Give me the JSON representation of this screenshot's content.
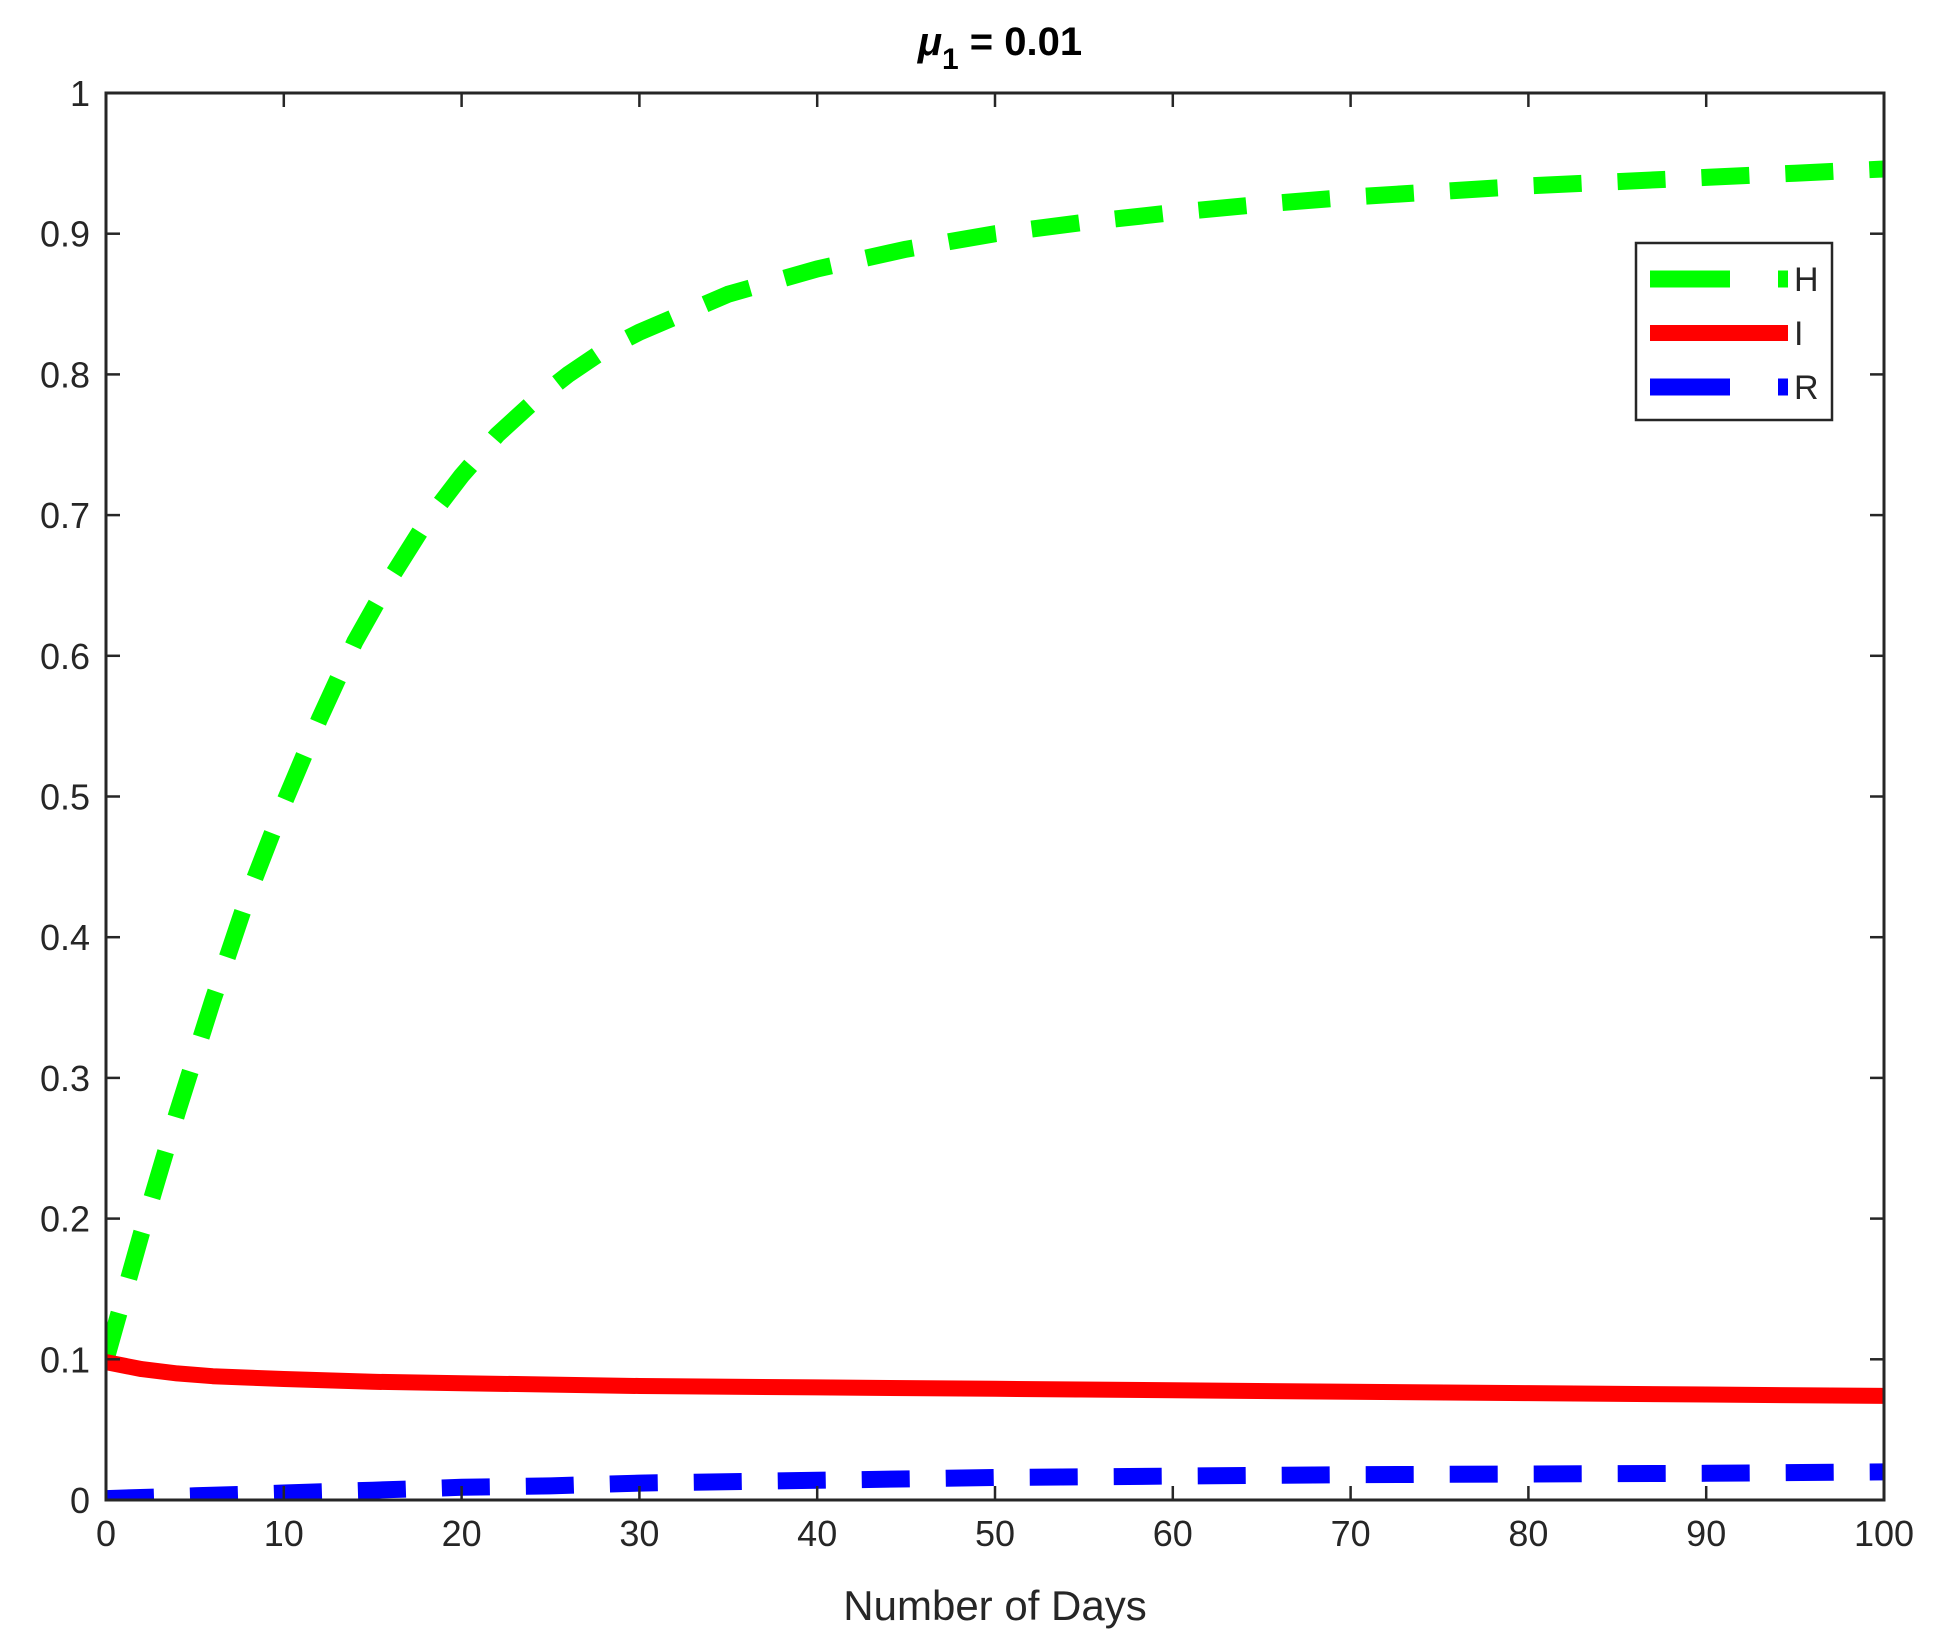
{
  "chart_data": {
    "type": "line",
    "title": {
      "symbol": "μ",
      "subscript": "1",
      "rest": " = 0.01"
    },
    "xlabel": "Number of Days",
    "ylabel": "",
    "xlim": [
      0,
      100
    ],
    "ylim": [
      0,
      1
    ],
    "xticks": [
      0,
      10,
      20,
      30,
      40,
      50,
      60,
      70,
      80,
      90,
      100
    ],
    "xtick_labels": [
      "0",
      "10",
      "20",
      "30",
      "40",
      "50",
      "60",
      "70",
      "80",
      "90",
      "100"
    ],
    "yticks": [
      0,
      0.1,
      0.2,
      0.3,
      0.4,
      0.5,
      0.6,
      0.7,
      0.8,
      0.9,
      1
    ],
    "ytick_labels": [
      "0",
      "0.1",
      "0.2",
      "0.3",
      "0.4",
      "0.5",
      "0.6",
      "0.7",
      "0.8",
      "0.9",
      "1"
    ],
    "grid": false,
    "legend_position": "top-right",
    "series": [
      {
        "name": "H",
        "color": "#00ff00",
        "style": "dashed",
        "x": [
          0,
          2,
          4,
          6,
          8,
          10,
          12,
          14,
          16,
          18,
          20,
          22,
          24,
          26,
          28,
          30,
          35,
          40,
          45,
          50,
          55,
          60,
          65,
          70,
          75,
          80,
          85,
          90,
          95,
          100
        ],
        "y": [
          0.1,
          0.19,
          0.275,
          0.355,
          0.43,
          0.495,
          0.555,
          0.61,
          0.655,
          0.695,
          0.728,
          0.757,
          0.78,
          0.8,
          0.817,
          0.83,
          0.857,
          0.875,
          0.889,
          0.9,
          0.908,
          0.915,
          0.921,
          0.926,
          0.93,
          0.934,
          0.937,
          0.94,
          0.943,
          0.946
        ]
      },
      {
        "name": "I",
        "color": "#ff0000",
        "style": "solid",
        "x": [
          0,
          2,
          4,
          6,
          8,
          10,
          15,
          20,
          30,
          40,
          50,
          60,
          70,
          80,
          90,
          100
        ],
        "y": [
          0.098,
          0.093,
          0.09,
          0.088,
          0.087,
          0.086,
          0.084,
          0.083,
          0.081,
          0.08,
          0.079,
          0.078,
          0.077,
          0.076,
          0.075,
          0.074
        ]
      },
      {
        "name": "R",
        "color": "#0000ff",
        "style": "dashed",
        "x": [
          0,
          5,
          10,
          15,
          20,
          25,
          30,
          40,
          50,
          60,
          70,
          80,
          90,
          100
        ],
        "y": [
          0.001,
          0.003,
          0.005,
          0.007,
          0.009,
          0.01,
          0.012,
          0.014,
          0.016,
          0.017,
          0.018,
          0.0185,
          0.019,
          0.02
        ]
      }
    ]
  }
}
